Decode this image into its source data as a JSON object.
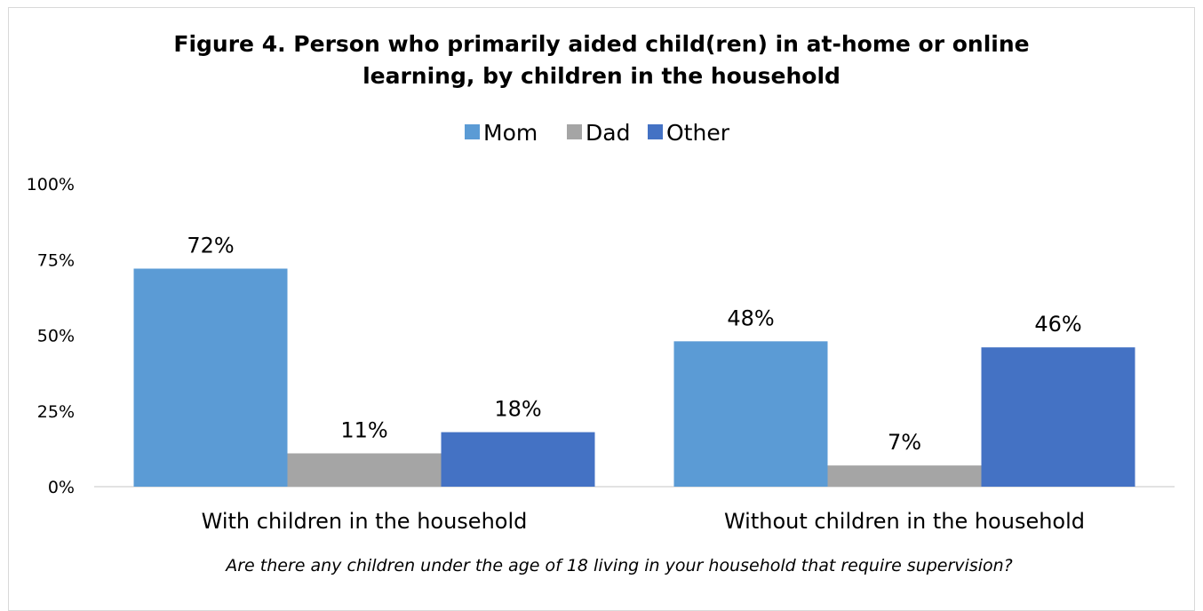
{
  "chart_data": {
    "type": "bar",
    "title_lines": [
      "Figure 4. Person who primarily aided child(ren) in at-home or online",
      "learning, by children in the household"
    ],
    "categories": [
      "With children in the household",
      "Without children in the household"
    ],
    "series": [
      {
        "name": "Mom",
        "color": "#5b9bd5",
        "values": [
          72,
          48
        ]
      },
      {
        "name": "Dad",
        "color": "#a5a5a5",
        "values": [
          11,
          7
        ]
      },
      {
        "name": "Other",
        "color": "#4472c4",
        "values": [
          18,
          46
        ]
      }
    ],
    "value_labels": [
      [
        "72%",
        "48%"
      ],
      [
        "11%",
        "7%"
      ],
      [
        "18%",
        "46%"
      ]
    ],
    "yticks": [
      0,
      25,
      50,
      75,
      100
    ],
    "ytick_labels": [
      "0%",
      "25%",
      "50%",
      "75%",
      "100%"
    ],
    "ylim": [
      0,
      100
    ],
    "xlabel": "Are there any children under the age of 18 living in your household that require supervision?",
    "ylabel": "",
    "legend_position": "top",
    "grid": false
  }
}
